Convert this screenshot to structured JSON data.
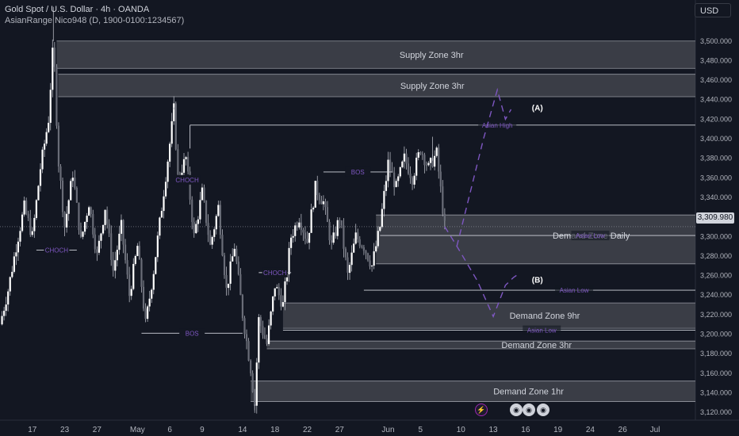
{
  "header": {
    "title": "Gold Spot / U.S. Dollar · 4h · OANDA",
    "indicator": "AsianRange Nico948 (D, 1900-0100:1234567)"
  },
  "toolbar": {
    "currency": "USD"
  },
  "current_price": "3,309.980",
  "icons": {
    "bolt": "lightning-icon",
    "flag": "country-flag-icon"
  },
  "colors": {
    "background": "#131722",
    "candle": "#d1d4dc",
    "zone": "#4a4c55",
    "label_purple": "#7e57c2",
    "grid_text": "#b2b5be"
  },
  "chart_data": {
    "type": "candlestick",
    "symbol": "Gold Spot / U.S. Dollar",
    "timeframe": "4h",
    "ylim": [
      3112,
      3542
    ],
    "yticks": [
      3120,
      3140,
      3160,
      3180,
      3200,
      3220,
      3240,
      3260,
      3280,
      3300,
      3320,
      3340,
      3360,
      3380,
      3400,
      3420,
      3440,
      3460,
      3480,
      3500
    ],
    "ytick_labels": [
      "3,120.000",
      "3,140.000",
      "3,160.000",
      "3,180.000",
      "3,200.000",
      "3,220.000",
      "3,240.000",
      "3,260.000",
      "3,280.000",
      "3,300.000",
      "3,320.000",
      "3,340.000",
      "3,360.000",
      "3,380.000",
      "3,400.000",
      "3,420.000",
      "3,440.000",
      "3,460.000",
      "3,480.000",
      "3,500.000"
    ],
    "xlim": [
      0,
      86
    ],
    "xticks": [
      {
        "t": 4,
        "label": "17"
      },
      {
        "t": 8,
        "label": "23"
      },
      {
        "t": 12,
        "label": "27"
      },
      {
        "t": 17,
        "label": "May"
      },
      {
        "t": 21,
        "label": "6"
      },
      {
        "t": 25,
        "label": "9"
      },
      {
        "t": 30,
        "label": "14"
      },
      {
        "t": 34,
        "label": "18"
      },
      {
        "t": 38,
        "label": "22"
      },
      {
        "t": 42,
        "label": "27"
      },
      {
        "t": 48,
        "label": "Jun"
      },
      {
        "t": 52,
        "label": "5"
      },
      {
        "t": 57,
        "label": "10"
      },
      {
        "t": 61,
        "label": "13"
      },
      {
        "t": 65,
        "label": "16"
      },
      {
        "t": 69,
        "label": "19"
      },
      {
        "t": 73,
        "label": "24"
      },
      {
        "t": 77,
        "label": "26"
      },
      {
        "t": 81,
        "label": "Jul"
      }
    ],
    "price_path": [
      [
        0,
        3210
      ],
      [
        1,
        3245
      ],
      [
        2,
        3290
      ],
      [
        3,
        3330
      ],
      [
        4,
        3300
      ],
      [
        5,
        3370
      ],
      [
        6,
        3420
      ],
      [
        6.6,
        3500
      ],
      [
        7.2,
        3380
      ],
      [
        8,
        3310
      ],
      [
        9,
        3365
      ],
      [
        10,
        3295
      ],
      [
        11,
        3335
      ],
      [
        12,
        3280
      ],
      [
        13,
        3330
      ],
      [
        14,
        3265
      ],
      [
        15,
        3310
      ],
      [
        16,
        3240
      ],
      [
        17,
        3290
      ],
      [
        18,
        3210
      ],
      [
        19,
        3265
      ],
      [
        20,
        3330
      ],
      [
        21,
        3395
      ],
      [
        21.5,
        3430
      ],
      [
        22,
        3360
      ],
      [
        23,
        3380
      ],
      [
        24,
        3300
      ],
      [
        25,
        3345
      ],
      [
        26,
        3290
      ],
      [
        27,
        3330
      ],
      [
        28,
        3245
      ],
      [
        29,
        3290
      ],
      [
        30,
        3220
      ],
      [
        31,
        3165
      ],
      [
        31.5,
        3128
      ],
      [
        32,
        3215
      ],
      [
        33,
        3190
      ],
      [
        34,
        3250
      ],
      [
        35,
        3230
      ],
      [
        36,
        3300
      ],
      [
        37,
        3320
      ],
      [
        38,
        3295
      ],
      [
        39,
        3350
      ],
      [
        40,
        3335
      ],
      [
        41,
        3290
      ],
      [
        42,
        3320
      ],
      [
        43,
        3260
      ],
      [
        44,
        3300
      ],
      [
        45,
        3290
      ],
      [
        46,
        3270
      ],
      [
        47,
        3310
      ],
      [
        48,
        3375
      ],
      [
        49,
        3350
      ],
      [
        50,
        3380
      ],
      [
        51,
        3360
      ],
      [
        52,
        3390
      ],
      [
        53,
        3370
      ],
      [
        54,
        3385
      ],
      [
        55,
        3310
      ]
    ],
    "zones": [
      {
        "label": "Supply Zone 3hr",
        "t0": 7.0,
        "t1": 86,
        "top": 3500,
        "bottom": 3472
      },
      {
        "label": "Supply Zone 3hr",
        "t0": 7.2,
        "t1": 86,
        "top": 3466,
        "bottom": 3443
      },
      {
        "label": "Demand Zone Daily",
        "t0": 46.5,
        "t1": 86,
        "top": 3322,
        "bottom": 3272
      },
      {
        "label": "Demand Zone 9hr",
        "t0": 35.0,
        "t1": 86,
        "top": 3232,
        "bottom": 3206
      },
      {
        "label": "Demand Zone 3hr",
        "t0": 33.0,
        "t1": 86,
        "top": 3193,
        "bottom": 3185
      },
      {
        "label": "Demand Zone 1hr",
        "t0": 31.0,
        "t1": 86,
        "top": 3152,
        "bottom": 3131
      }
    ],
    "levels": [
      {
        "label": "Asian High",
        "price": 3414,
        "t0": 23.5,
        "t1": 86,
        "label_t": 61.5
      },
      {
        "label": "Asian Low",
        "price": 3301,
        "t0": 47.0,
        "t1": 86,
        "label_t": 73
      },
      {
        "label": "Asian Low",
        "price": 3245,
        "t0": 45.0,
        "t1": 86,
        "label_t": 71
      },
      {
        "label": "Asian Low",
        "price": 3204,
        "t0": 35.0,
        "t1": 86,
        "label_t": 67
      }
    ],
    "structure_labels": [
      {
        "label": "CHOCH",
        "t0": 4.5,
        "t1": 9.5,
        "price": 3286
      },
      {
        "label": "CHOCH",
        "t0": 21.8,
        "t1": 24.5,
        "price": 3358
      },
      {
        "label": "BOS",
        "t0": 17.5,
        "t1": 30.0,
        "price": 3201
      },
      {
        "label": "CHOCH",
        "t0": 32.0,
        "t1": 36.0,
        "price": 3263
      },
      {
        "label": "BOS",
        "t0": 40.0,
        "t1": 48.5,
        "price": 3366
      }
    ],
    "projection_path": [
      [
        55,
        3310
      ],
      [
        56.5,
        3290
      ],
      [
        59,
        3255
      ],
      [
        61,
        3218
      ],
      [
        62.5,
        3250
      ],
      [
        63.5,
        3258
      ],
      [
        64.2,
        3262
      ]
    ],
    "projection_path_2": [
      [
        56.5,
        3290
      ],
      [
        59.8,
        3400
      ],
      [
        61.5,
        3450
      ],
      [
        62.5,
        3420
      ],
      [
        63.2,
        3430
      ]
    ],
    "annotations": [
      {
        "label": "(A)",
        "t": 64.6,
        "price": 3432
      },
      {
        "label": "(B)",
        "t": 64.6,
        "price": 3256
      }
    ]
  }
}
